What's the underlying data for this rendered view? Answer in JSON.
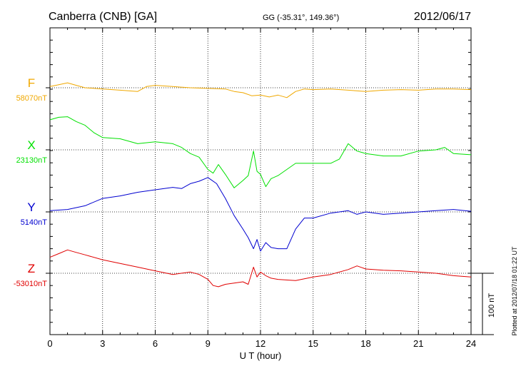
{
  "header": {
    "station": "Canberra (CNB)  [GA]",
    "coords": "GG (-35.31°, 149.36°)",
    "date": "2012/06/17"
  },
  "side_note": "Plotted at 2012/07/18 01:22 UT",
  "scale_label": "100 nT",
  "chart_data": {
    "type": "line",
    "xlabel": "U T (hour)",
    "xlim": [
      0,
      24
    ],
    "xticks": [
      "0",
      "3",
      "6",
      "9",
      "12",
      "15",
      "18",
      "21",
      "24"
    ],
    "scale_bar_nT": 100,
    "series": [
      {
        "name": "F",
        "baseline_label": "58070nT",
        "baseline_nT": 58070,
        "color": "#f0a800",
        "x": [
          0,
          0.5,
          1,
          1.5,
          2,
          3,
          4,
          5,
          5.5,
          6,
          7,
          8,
          9,
          10,
          10.5,
          11,
          11.5,
          12,
          12.5,
          13,
          13.5,
          14,
          14.5,
          15,
          16,
          17,
          18,
          19,
          20,
          21,
          22,
          23,
          24
        ],
        "y": [
          58072,
          58075,
          58078,
          58074,
          58070,
          58068,
          58066,
          58064,
          58072,
          58074,
          58072,
          58070,
          58069,
          58068,
          58064,
          58062,
          58057,
          58058,
          58055,
          58058,
          58054,
          58064,
          58068,
          58067,
          58068,
          58066,
          58064,
          58066,
          58067,
          58066,
          58068,
          58068,
          58067
        ]
      },
      {
        "name": "X",
        "baseline_label": "23130nT",
        "baseline_nT": 23130,
        "color": "#00e000",
        "x": [
          0,
          0.5,
          1,
          1.5,
          2,
          2.5,
          3,
          4,
          5,
          6,
          7,
          7.5,
          8,
          8.5,
          9,
          9.3,
          9.6,
          10,
          10.5,
          11,
          11.3,
          11.6,
          11.8,
          12,
          12.3,
          12.6,
          13,
          13.5,
          14,
          15,
          16,
          16.5,
          17,
          17.5,
          18,
          19,
          20,
          21,
          22,
          22.5,
          23,
          24
        ],
        "y": [
          23179,
          23183,
          23184,
          23176,
          23170,
          23158,
          23150,
          23148,
          23140,
          23143,
          23140,
          23134,
          23124,
          23118,
          23098,
          23092,
          23106,
          23090,
          23068,
          23080,
          23088,
          23128,
          23095,
          23090,
          23070,
          23083,
          23088,
          23098,
          23108,
          23108,
          23108,
          23115,
          23140,
          23128,
          23124,
          23120,
          23120,
          23128,
          23130,
          23134,
          23124,
          23122
        ]
      },
      {
        "name": "Y",
        "baseline_label": "5140nT",
        "baseline_nT": 5140,
        "color": "#0000d0",
        "x": [
          0,
          1,
          2,
          3,
          4,
          5,
          6,
          7,
          7.5,
          8,
          8.5,
          9,
          9.5,
          10,
          10.5,
          11,
          11.3,
          11.6,
          11.8,
          12,
          12.3,
          12.6,
          13,
          13.5,
          14,
          14.5,
          15,
          16,
          17,
          17.5,
          18,
          19,
          20,
          21,
          22,
          23,
          24
        ],
        "y": [
          5142,
          5144,
          5150,
          5162,
          5166,
          5172,
          5176,
          5180,
          5178,
          5186,
          5190,
          5196,
          5186,
          5162,
          5134,
          5112,
          5098,
          5080,
          5095,
          5076,
          5090,
          5082,
          5080,
          5080,
          5112,
          5130,
          5130,
          5138,
          5142,
          5136,
          5140,
          5136,
          5138,
          5140,
          5142,
          5144,
          5141
        ]
      },
      {
        "name": "Z",
        "baseline_label": "-53010nT",
        "baseline_nT": -53010,
        "color": "#e00000",
        "x": [
          0,
          0.5,
          1,
          1.5,
          2,
          3,
          4,
          5,
          6,
          7,
          8,
          8.5,
          9,
          9.3,
          9.6,
          10,
          10.5,
          11,
          11.3,
          11.6,
          11.8,
          12,
          12.3,
          12.6,
          13,
          14,
          15,
          16,
          17,
          17.5,
          18,
          19,
          20,
          21,
          22,
          23,
          24
        ],
        "y": [
          -52984,
          -52978,
          -52972,
          -52976,
          -52980,
          -52988,
          -52994,
          -53000,
          -53006,
          -53012,
          -53008,
          -53012,
          -53020,
          -53030,
          -53032,
          -53028,
          -53026,
          -53024,
          -53028,
          -53000,
          -53016,
          -53008,
          -53014,
          -53018,
          -53020,
          -53022,
          -53016,
          -53012,
          -53004,
          -52998,
          -53003,
          -53005,
          -53006,
          -53008,
          -53010,
          -53014,
          -53016
        ]
      }
    ]
  }
}
